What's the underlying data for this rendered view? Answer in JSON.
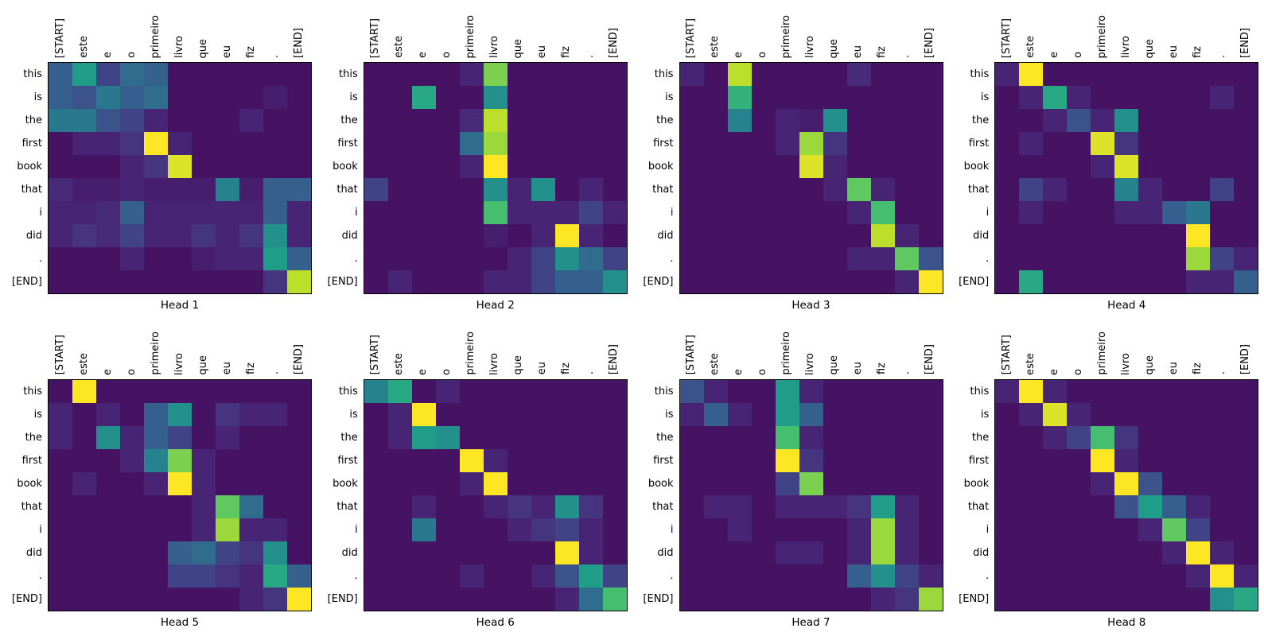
{
  "figure": {
    "background_color": "#ffffff",
    "rows": 2,
    "columns": 4
  },
  "colors": {
    "colormap_name": "viridis",
    "colormap_stops": [
      "#440154",
      "#482878",
      "#3e4a89",
      "#31688e",
      "#26828e",
      "#1f9e89",
      "#35b779",
      "#6dcd59",
      "#b4de2c",
      "#fde725"
    ],
    "axis_border": "#000000",
    "text": "#000000"
  },
  "chart_data": {
    "type": "heatmap",
    "description": "Transformer attention weights per head; x axis = source tokens (Portuguese), y axis = output tokens (English)",
    "colormap": "viridis",
    "value_range": [
      0,
      1
    ],
    "x_label_rotation": 90,
    "x_labels": [
      "[START]",
      "este",
      "e",
      "o",
      "primeiro",
      "livro",
      "que",
      "eu",
      "fiz",
      ".",
      "[END]"
    ],
    "y_labels": [
      "this",
      "is",
      "the",
      "first",
      "book",
      "that",
      "i",
      "did",
      ".",
      "[END]"
    ],
    "subplots": [
      {
        "title": "Head 1",
        "values": [
          [
            0.3,
            0.55,
            0.2,
            0.35,
            0.3,
            0.05,
            0.05,
            0.05,
            0.05,
            0.05,
            0.05
          ],
          [
            0.3,
            0.25,
            0.4,
            0.3,
            0.35,
            0.05,
            0.05,
            0.05,
            0.05,
            0.08,
            0.05
          ],
          [
            0.4,
            0.4,
            0.25,
            0.2,
            0.1,
            0.05,
            0.05,
            0.05,
            0.1,
            0.05,
            0.05
          ],
          [
            0.05,
            0.1,
            0.1,
            0.15,
            1.0,
            0.1,
            0.05,
            0.05,
            0.05,
            0.05,
            0.05
          ],
          [
            0.05,
            0.05,
            0.05,
            0.1,
            0.15,
            0.95,
            0.05,
            0.05,
            0.05,
            0.05,
            0.05
          ],
          [
            0.12,
            0.08,
            0.08,
            0.1,
            0.08,
            0.08,
            0.08,
            0.45,
            0.08,
            0.3,
            0.3
          ],
          [
            0.1,
            0.1,
            0.12,
            0.3,
            0.1,
            0.1,
            0.1,
            0.1,
            0.1,
            0.3,
            0.1
          ],
          [
            0.1,
            0.15,
            0.12,
            0.2,
            0.1,
            0.1,
            0.15,
            0.1,
            0.15,
            0.5,
            0.1
          ],
          [
            0.05,
            0.05,
            0.05,
            0.1,
            0.05,
            0.05,
            0.08,
            0.1,
            0.1,
            0.55,
            0.3
          ],
          [
            0.05,
            0.05,
            0.05,
            0.05,
            0.05,
            0.05,
            0.05,
            0.05,
            0.05,
            0.15,
            0.9
          ]
        ]
      },
      {
        "title": "Head 2",
        "values": [
          [
            0.05,
            0.05,
            0.05,
            0.05,
            0.1,
            0.8,
            0.05,
            0.05,
            0.05,
            0.05,
            0.05
          ],
          [
            0.05,
            0.05,
            0.6,
            0.05,
            0.05,
            0.5,
            0.05,
            0.05,
            0.05,
            0.05,
            0.05
          ],
          [
            0.05,
            0.05,
            0.05,
            0.05,
            0.12,
            0.9,
            0.05,
            0.05,
            0.05,
            0.05,
            0.05
          ],
          [
            0.05,
            0.05,
            0.05,
            0.05,
            0.35,
            0.85,
            0.05,
            0.05,
            0.05,
            0.05,
            0.05
          ],
          [
            0.05,
            0.05,
            0.05,
            0.05,
            0.1,
            1.0,
            0.05,
            0.05,
            0.05,
            0.05,
            0.05
          ],
          [
            0.2,
            0.05,
            0.05,
            0.05,
            0.05,
            0.5,
            0.1,
            0.5,
            0.05,
            0.1,
            0.05
          ],
          [
            0.05,
            0.05,
            0.05,
            0.05,
            0.05,
            0.7,
            0.1,
            0.1,
            0.1,
            0.2,
            0.1
          ],
          [
            0.05,
            0.05,
            0.05,
            0.05,
            0.05,
            0.08,
            0.05,
            0.1,
            1.0,
            0.1,
            0.05
          ],
          [
            0.05,
            0.05,
            0.05,
            0.05,
            0.05,
            0.05,
            0.1,
            0.2,
            0.5,
            0.35,
            0.2
          ],
          [
            0.05,
            0.1,
            0.05,
            0.05,
            0.05,
            0.1,
            0.1,
            0.2,
            0.3,
            0.3,
            0.5
          ]
        ]
      },
      {
        "title": "Head 3",
        "values": [
          [
            0.1,
            0.05,
            0.9,
            0.05,
            0.05,
            0.05,
            0.05,
            0.12,
            0.05,
            0.05,
            0.05
          ],
          [
            0.05,
            0.05,
            0.65,
            0.05,
            0.05,
            0.05,
            0.05,
            0.05,
            0.05,
            0.05,
            0.05
          ],
          [
            0.05,
            0.05,
            0.45,
            0.05,
            0.1,
            0.08,
            0.5,
            0.05,
            0.05,
            0.05,
            0.05
          ],
          [
            0.05,
            0.05,
            0.05,
            0.05,
            0.1,
            0.85,
            0.15,
            0.05,
            0.05,
            0.05,
            0.05
          ],
          [
            0.05,
            0.05,
            0.05,
            0.05,
            0.05,
            0.95,
            0.1,
            0.05,
            0.05,
            0.05,
            0.05
          ],
          [
            0.05,
            0.05,
            0.05,
            0.05,
            0.05,
            0.05,
            0.1,
            0.75,
            0.1,
            0.05,
            0.05
          ],
          [
            0.05,
            0.05,
            0.05,
            0.05,
            0.05,
            0.05,
            0.05,
            0.1,
            0.7,
            0.05,
            0.05
          ],
          [
            0.05,
            0.05,
            0.05,
            0.05,
            0.05,
            0.05,
            0.05,
            0.05,
            0.9,
            0.1,
            0.05
          ],
          [
            0.05,
            0.05,
            0.05,
            0.05,
            0.05,
            0.05,
            0.05,
            0.1,
            0.1,
            0.75,
            0.25
          ],
          [
            0.05,
            0.05,
            0.05,
            0.05,
            0.05,
            0.05,
            0.05,
            0.05,
            0.05,
            0.1,
            1.0
          ]
        ]
      },
      {
        "title": "Head 4",
        "values": [
          [
            0.1,
            1.0,
            0.05,
            0.05,
            0.05,
            0.05,
            0.05,
            0.05,
            0.05,
            0.05,
            0.05
          ],
          [
            0.05,
            0.1,
            0.6,
            0.1,
            0.05,
            0.05,
            0.05,
            0.05,
            0.05,
            0.1,
            0.05
          ],
          [
            0.05,
            0.05,
            0.1,
            0.25,
            0.1,
            0.5,
            0.05,
            0.05,
            0.05,
            0.05,
            0.05
          ],
          [
            0.05,
            0.1,
            0.05,
            0.05,
            0.95,
            0.15,
            0.05,
            0.05,
            0.05,
            0.05,
            0.05
          ],
          [
            0.05,
            0.05,
            0.05,
            0.05,
            0.1,
            0.95,
            0.05,
            0.05,
            0.05,
            0.05,
            0.05
          ],
          [
            0.05,
            0.2,
            0.1,
            0.05,
            0.05,
            0.45,
            0.1,
            0.05,
            0.05,
            0.2,
            0.05
          ],
          [
            0.05,
            0.1,
            0.05,
            0.05,
            0.05,
            0.1,
            0.1,
            0.3,
            0.4,
            0.05,
            0.05
          ],
          [
            0.05,
            0.05,
            0.05,
            0.05,
            0.05,
            0.05,
            0.05,
            0.05,
            1.0,
            0.05,
            0.05
          ],
          [
            0.05,
            0.05,
            0.05,
            0.05,
            0.05,
            0.05,
            0.05,
            0.05,
            0.85,
            0.2,
            0.1
          ],
          [
            0.05,
            0.6,
            0.05,
            0.05,
            0.05,
            0.05,
            0.05,
            0.05,
            0.1,
            0.1,
            0.3
          ]
        ]
      },
      {
        "title": "Head 5",
        "values": [
          [
            0.05,
            1.0,
            0.05,
            0.05,
            0.05,
            0.05,
            0.05,
            0.05,
            0.05,
            0.05,
            0.05
          ],
          [
            0.1,
            0.05,
            0.1,
            0.05,
            0.3,
            0.5,
            0.05,
            0.15,
            0.1,
            0.1,
            0.05
          ],
          [
            0.1,
            0.05,
            0.5,
            0.1,
            0.3,
            0.2,
            0.05,
            0.1,
            0.05,
            0.05,
            0.05
          ],
          [
            0.05,
            0.05,
            0.05,
            0.1,
            0.45,
            0.8,
            0.1,
            0.05,
            0.05,
            0.05,
            0.05
          ],
          [
            0.05,
            0.1,
            0.05,
            0.05,
            0.1,
            1.0,
            0.1,
            0.05,
            0.05,
            0.05,
            0.05
          ],
          [
            0.05,
            0.05,
            0.05,
            0.05,
            0.05,
            0.05,
            0.1,
            0.75,
            0.35,
            0.05,
            0.05
          ],
          [
            0.05,
            0.05,
            0.05,
            0.05,
            0.05,
            0.05,
            0.1,
            0.85,
            0.1,
            0.1,
            0.05
          ],
          [
            0.05,
            0.05,
            0.05,
            0.05,
            0.05,
            0.3,
            0.35,
            0.2,
            0.15,
            0.5,
            0.05
          ],
          [
            0.05,
            0.05,
            0.05,
            0.05,
            0.05,
            0.2,
            0.2,
            0.15,
            0.1,
            0.6,
            0.3
          ],
          [
            0.05,
            0.05,
            0.05,
            0.05,
            0.05,
            0.05,
            0.05,
            0.05,
            0.1,
            0.15,
            1.0
          ]
        ]
      },
      {
        "title": "Head 6",
        "values": [
          [
            0.45,
            0.6,
            0.05,
            0.1,
            0.05,
            0.05,
            0.05,
            0.05,
            0.05,
            0.05,
            0.05
          ],
          [
            0.05,
            0.1,
            1.0,
            0.05,
            0.05,
            0.05,
            0.05,
            0.05,
            0.05,
            0.05,
            0.05
          ],
          [
            0.05,
            0.1,
            0.55,
            0.5,
            0.05,
            0.05,
            0.05,
            0.05,
            0.05,
            0.05,
            0.05
          ],
          [
            0.05,
            0.05,
            0.05,
            0.05,
            1.0,
            0.1,
            0.05,
            0.05,
            0.05,
            0.05,
            0.05
          ],
          [
            0.05,
            0.05,
            0.05,
            0.05,
            0.1,
            1.0,
            0.05,
            0.05,
            0.05,
            0.05,
            0.05
          ],
          [
            0.05,
            0.05,
            0.1,
            0.05,
            0.05,
            0.1,
            0.15,
            0.1,
            0.5,
            0.15,
            0.05
          ],
          [
            0.05,
            0.05,
            0.4,
            0.05,
            0.05,
            0.05,
            0.1,
            0.15,
            0.2,
            0.1,
            0.05
          ],
          [
            0.05,
            0.05,
            0.05,
            0.05,
            0.05,
            0.05,
            0.05,
            0.05,
            1.0,
            0.1,
            0.05
          ],
          [
            0.05,
            0.05,
            0.05,
            0.05,
            0.1,
            0.05,
            0.05,
            0.1,
            0.25,
            0.55,
            0.2
          ],
          [
            0.05,
            0.05,
            0.05,
            0.05,
            0.05,
            0.05,
            0.05,
            0.05,
            0.1,
            0.35,
            0.7
          ]
        ]
      },
      {
        "title": "Head 7",
        "values": [
          [
            0.25,
            0.1,
            0.05,
            0.05,
            0.55,
            0.1,
            0.05,
            0.05,
            0.05,
            0.05,
            0.05
          ],
          [
            0.1,
            0.3,
            0.1,
            0.05,
            0.55,
            0.3,
            0.05,
            0.05,
            0.05,
            0.05,
            0.05
          ],
          [
            0.05,
            0.05,
            0.05,
            0.05,
            0.7,
            0.1,
            0.05,
            0.05,
            0.05,
            0.05,
            0.05
          ],
          [
            0.05,
            0.05,
            0.05,
            0.05,
            1.0,
            0.15,
            0.05,
            0.05,
            0.05,
            0.05,
            0.05
          ],
          [
            0.05,
            0.05,
            0.05,
            0.05,
            0.2,
            0.8,
            0.05,
            0.05,
            0.05,
            0.05,
            0.05
          ],
          [
            0.05,
            0.1,
            0.1,
            0.05,
            0.1,
            0.1,
            0.1,
            0.15,
            0.55,
            0.1,
            0.05
          ],
          [
            0.05,
            0.05,
            0.1,
            0.05,
            0.05,
            0.05,
            0.05,
            0.1,
            0.85,
            0.1,
            0.05
          ],
          [
            0.05,
            0.05,
            0.05,
            0.05,
            0.1,
            0.1,
            0.05,
            0.1,
            0.85,
            0.1,
            0.05
          ],
          [
            0.05,
            0.05,
            0.05,
            0.05,
            0.05,
            0.05,
            0.05,
            0.3,
            0.5,
            0.2,
            0.1
          ],
          [
            0.05,
            0.05,
            0.05,
            0.05,
            0.05,
            0.05,
            0.05,
            0.05,
            0.1,
            0.15,
            0.85
          ]
        ]
      },
      {
        "title": "Head 8",
        "values": [
          [
            0.1,
            1.0,
            0.1,
            0.05,
            0.05,
            0.05,
            0.05,
            0.05,
            0.05,
            0.05,
            0.05
          ],
          [
            0.05,
            0.1,
            0.95,
            0.1,
            0.05,
            0.05,
            0.05,
            0.05,
            0.05,
            0.05,
            0.05
          ],
          [
            0.05,
            0.05,
            0.1,
            0.2,
            0.7,
            0.15,
            0.05,
            0.05,
            0.05,
            0.05,
            0.05
          ],
          [
            0.05,
            0.05,
            0.05,
            0.05,
            1.0,
            0.1,
            0.05,
            0.05,
            0.05,
            0.05,
            0.05
          ],
          [
            0.05,
            0.05,
            0.05,
            0.05,
            0.1,
            1.0,
            0.25,
            0.05,
            0.05,
            0.05,
            0.05
          ],
          [
            0.05,
            0.05,
            0.05,
            0.05,
            0.05,
            0.25,
            0.55,
            0.3,
            0.1,
            0.05,
            0.05
          ],
          [
            0.05,
            0.05,
            0.05,
            0.05,
            0.05,
            0.05,
            0.1,
            0.75,
            0.2,
            0.05,
            0.05
          ],
          [
            0.05,
            0.05,
            0.05,
            0.05,
            0.05,
            0.05,
            0.05,
            0.1,
            1.0,
            0.1,
            0.05
          ],
          [
            0.05,
            0.05,
            0.05,
            0.05,
            0.05,
            0.05,
            0.05,
            0.05,
            0.1,
            1.0,
            0.1
          ],
          [
            0.05,
            0.05,
            0.05,
            0.05,
            0.05,
            0.05,
            0.05,
            0.05,
            0.05,
            0.5,
            0.6
          ]
        ]
      }
    ]
  }
}
